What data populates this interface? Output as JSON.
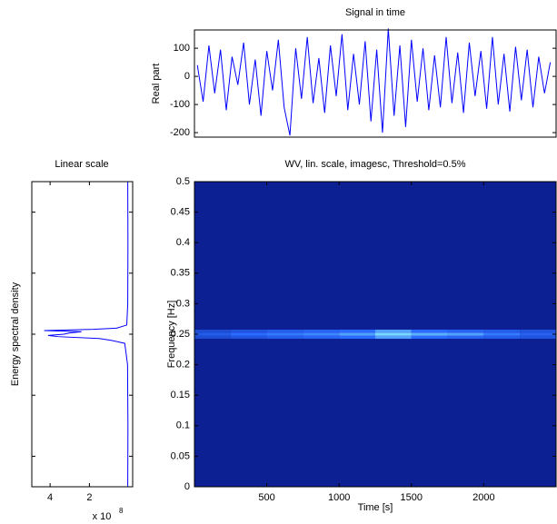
{
  "chart_data": [
    {
      "type": "line",
      "title": "Signal in time",
      "ylabel": "Real part",
      "color": "#0000ff",
      "x": [
        20,
        60,
        100,
        140,
        180,
        220,
        260,
        300,
        340,
        380,
        420,
        460,
        500,
        540,
        580,
        620,
        660,
        700,
        740,
        780,
        820,
        860,
        900,
        940,
        980,
        1020,
        1060,
        1100,
        1140,
        1180,
        1220,
        1260,
        1300,
        1340,
        1380,
        1420,
        1460,
        1500,
        1540,
        1580,
        1620,
        1660,
        1700,
        1740,
        1780,
        1820,
        1860,
        1900,
        1940,
        1980,
        2020,
        2060,
        2100,
        2140,
        2180,
        2220,
        2260,
        2300,
        2340,
        2380,
        2420,
        2460
      ],
      "values": [
        40,
        -90,
        110,
        -60,
        95,
        -120,
        70,
        -30,
        120,
        -100,
        60,
        -140,
        90,
        -50,
        130,
        -110,
        -210,
        100,
        -80,
        140,
        -95,
        65,
        -130,
        110,
        -70,
        150,
        -120,
        80,
        -100,
        125,
        -160,
        95,
        -200,
        170,
        -140,
        110,
        -180,
        130,
        -90,
        100,
        -120,
        75,
        -110,
        140,
        -95,
        85,
        -130,
        120,
        -70,
        90,
        -115,
        140,
        -100,
        80,
        -125,
        105,
        -85,
        95,
        -110,
        70,
        -60,
        50
      ],
      "xlim": [
        0,
        2500
      ],
      "ylim": [
        -216,
        165
      ],
      "yticks": [
        -200,
        -100,
        0,
        100
      ]
    },
    {
      "type": "spectrum",
      "title": "Linear scale",
      "ylabel": "Energy spectral density",
      "color": "#0000ff",
      "frequency": [
        0,
        0.1,
        0.2,
        0.235,
        0.24,
        0.243,
        0.246,
        0.248,
        0.25,
        0.252,
        0.254,
        0.256,
        0.258,
        0.26,
        0.265,
        0.3,
        0.4,
        0.5
      ],
      "values": [
        5000000.0,
        4000000.0,
        6000000.0,
        20000000.0,
        90000000.0,
        150000000.0,
        360000000.0,
        410000000.0,
        330000000.0,
        300000000.0,
        240000000.0,
        430000000.0,
        180000000.0,
        60000000.0,
        10000000.0,
        5000000.0,
        4000000.0,
        5000000.0
      ],
      "xlim": [
        493000000.0,
        -20000000.0
      ],
      "xticks": [
        {
          "value": 400000000.0,
          "label": "4"
        },
        {
          "value": 200000000.0,
          "label": "2"
        }
      ],
      "exponent_base": "x 10",
      "exponent": "8",
      "ylim": [
        0,
        0.5
      ],
      "yticks": [
        0.05,
        0.15,
        0.25,
        0.35,
        0.45
      ]
    },
    {
      "type": "heatmap",
      "title": "WV, lin. scale, imagesc, Threshold=0.5%",
      "xlabel": "Time [s]",
      "ylabel": "Frequency [Hz]",
      "xlim": [
        0,
        2500
      ],
      "ylim": [
        0,
        0.5
      ],
      "xticks": [
        500,
        1000,
        1500,
        2000
      ],
      "yticks": [
        0,
        0.05,
        0.1,
        0.15,
        0.2,
        0.25,
        0.3,
        0.35,
        0.4,
        0.45,
        0.5
      ],
      "background_color": "#0c1f93",
      "colors": [
        "#0c1f93",
        "#2a6cff",
        "#8ff0ff"
      ],
      "x": [
        125,
        375,
        625,
        875,
        1125,
        1375,
        1625,
        1875,
        2125,
        2375
      ],
      "y": [
        0.245,
        0.25,
        0.255
      ],
      "z": [
        [
          0.3,
          0.35,
          0.4,
          0.45,
          0.5,
          0.7,
          0.5,
          0.45,
          0.4,
          0.35
        ],
        [
          0.4,
          0.5,
          0.55,
          0.6,
          0.7,
          0.9,
          0.75,
          0.7,
          0.55,
          0.45
        ],
        [
          0.3,
          0.35,
          0.4,
          0.45,
          0.5,
          0.7,
          0.5,
          0.45,
          0.4,
          0.35
        ]
      ]
    }
  ]
}
